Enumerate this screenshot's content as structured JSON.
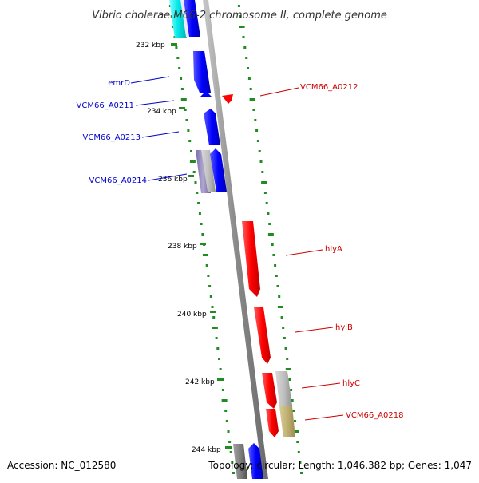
{
  "title": "Vibrio cholerae M66-2 chromosome II, complete genome",
  "footer": {
    "accession": "Accession: NC_012580",
    "summary": "Topology: circular; Length: 1,046,382 bp; Genes: 1,047"
  },
  "ticks": [
    "232 kbp",
    "234 kbp",
    "236 kbp",
    "238 kbp",
    "240 kbp",
    "242 kbp",
    "244 kbp"
  ],
  "labels": {
    "emrD": "emrD",
    "a0211": "VCM66_A0211",
    "a0213": "VCM66_A0213",
    "a0214": "VCM66_A0214",
    "a0212": "VCM66_A0212",
    "hlyA": "hlyA",
    "hylB": "hylB",
    "hlyC": "hlyC",
    "a0218": "VCM66_A0218"
  },
  "colors": {
    "reverse_strand": "#0000ff",
    "forward_strand": "#ff0000",
    "backbone": "#999999",
    "gc_skew": "#228b22"
  }
}
